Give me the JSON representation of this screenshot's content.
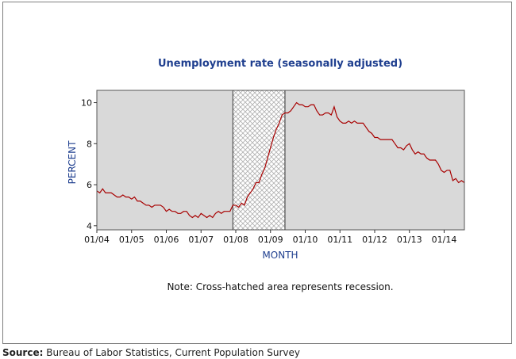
{
  "chart_data": {
    "type": "line",
    "title": "Unemployment rate (seasonally adjusted)",
    "xlabel": "MONTH",
    "ylabel": "PERCENT",
    "x_range": [
      "2004-01",
      "2014-08"
    ],
    "ylim": [
      3.8,
      10.6
    ],
    "y_ticks": [
      4,
      6,
      8,
      10
    ],
    "x_ticks": [
      {
        "date": "2004-01",
        "label": "01/04"
      },
      {
        "date": "2005-01",
        "label": "01/05"
      },
      {
        "date": "2006-01",
        "label": "01/06"
      },
      {
        "date": "2007-01",
        "label": "01/07"
      },
      {
        "date": "2008-01",
        "label": "01/08"
      },
      {
        "date": "2009-01",
        "label": "01/09"
      },
      {
        "date": "2010-01",
        "label": "01/10"
      },
      {
        "date": "2011-01",
        "label": "01/11"
      },
      {
        "date": "2012-01",
        "label": "01/12"
      },
      {
        "date": "2013-01",
        "label": "01/13"
      },
      {
        "date": "2014-01",
        "label": "01/14"
      }
    ],
    "recession": {
      "start": "2007-12",
      "end": "2009-06"
    },
    "grid": false,
    "series": [
      {
        "color": "#a80000",
        "start": "2004-01",
        "values": [
          5.7,
          5.6,
          5.8,
          5.6,
          5.6,
          5.6,
          5.5,
          5.4,
          5.4,
          5.5,
          5.4,
          5.4,
          5.3,
          5.4,
          5.2,
          5.2,
          5.1,
          5.0,
          5.0,
          4.9,
          5.0,
          5.0,
          5.0,
          4.9,
          4.7,
          4.8,
          4.7,
          4.7,
          4.6,
          4.6,
          4.7,
          4.7,
          4.5,
          4.4,
          4.5,
          4.4,
          4.6,
          4.5,
          4.4,
          4.5,
          4.4,
          4.6,
          4.7,
          4.6,
          4.7,
          4.7,
          4.7,
          5.0,
          5.0,
          4.9,
          5.1,
          5.0,
          5.4,
          5.6,
          5.8,
          6.1,
          6.1,
          6.5,
          6.8,
          7.3,
          7.8,
          8.3,
          8.7,
          9.0,
          9.4,
          9.5,
          9.5,
          9.6,
          9.8,
          10.0,
          9.9,
          9.9,
          9.8,
          9.8,
          9.9,
          9.9,
          9.6,
          9.4,
          9.4,
          9.5,
          9.5,
          9.4,
          9.8,
          9.3,
          9.1,
          9.0,
          9.0,
          9.1,
          9.0,
          9.1,
          9.0,
          9.0,
          9.0,
          8.8,
          8.6,
          8.5,
          8.3,
          8.3,
          8.2,
          8.2,
          8.2,
          8.2,
          8.2,
          8.0,
          7.8,
          7.8,
          7.7,
          7.9,
          8.0,
          7.7,
          7.5,
          7.6,
          7.5,
          7.5,
          7.3,
          7.2,
          7.2,
          7.2,
          7.0,
          6.7,
          6.6,
          6.7,
          6.7,
          6.2,
          6.3,
          6.1,
          6.2,
          6.1
        ]
      }
    ],
    "note": "Note: Cross-hatched area represents recession."
  },
  "source": {
    "label": "Source:",
    "text": "Bureau of Labor Statistics, Current Population Survey"
  }
}
